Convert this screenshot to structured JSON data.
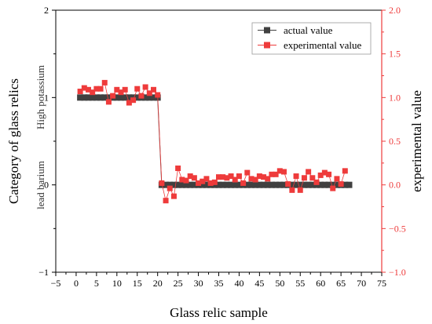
{
  "chart_data": {
    "type": "scatter",
    "xlabel": "Glass relic sample",
    "ylabel_left": "Category of glass relics",
    "ylabel_right": "experimental value",
    "category_labels": [
      {
        "text": "High potassium",
        "value": 1
      },
      {
        "text": "lead barium",
        "value": 0
      }
    ],
    "x_range": [
      -5,
      75
    ],
    "x_ticks": [
      -5,
      0,
      5,
      10,
      15,
      20,
      25,
      30,
      35,
      40,
      45,
      50,
      55,
      60,
      65,
      70,
      75
    ],
    "x_tick_labels": [
      "−5",
      "0",
      "5",
      "10",
      "15",
      "20",
      "25",
      "30",
      "35",
      "40",
      "45",
      "50",
      "55",
      "60",
      "65",
      "70",
      "75"
    ],
    "y_left_range": [
      -1,
      2
    ],
    "y_left_ticks": [
      -1,
      0,
      1,
      2
    ],
    "y_left_tick_labels": [
      "−1",
      "0",
      "1",
      "2"
    ],
    "y_right_range": [
      -1,
      2
    ],
    "y_right_ticks": [
      -1,
      -0.5,
      0,
      0.5,
      1,
      1.5,
      2
    ],
    "y_right_tick_labels": [
      "−1.0",
      "−0.5",
      "0.0",
      "0.5",
      "1.0",
      "1.5",
      "2.0"
    ],
    "legend_position": "top-right",
    "colors": {
      "actual": "#404040",
      "experimental": "#ee3b3b",
      "right_axis": "#ee3b3b"
    },
    "series": [
      {
        "name": "actual value",
        "x": [
          1,
          2,
          3,
          4,
          5,
          6,
          7,
          8,
          9,
          10,
          11,
          12,
          13,
          14,
          15,
          16,
          17,
          18,
          19,
          20,
          21,
          22,
          23,
          24,
          25,
          26,
          27,
          28,
          29,
          30,
          31,
          32,
          33,
          34,
          35,
          36,
          37,
          38,
          39,
          40,
          41,
          42,
          43,
          44,
          45,
          46,
          47,
          48,
          49,
          50,
          51,
          52,
          53,
          54,
          55,
          56,
          57,
          58,
          59,
          60,
          61,
          62,
          63,
          64,
          65,
          66,
          67
        ],
        "values": [
          1,
          1,
          1,
          1,
          1,
          1,
          1,
          1,
          1,
          1,
          1,
          1,
          1,
          1,
          1,
          1,
          1,
          1,
          1,
          1,
          0,
          0,
          0,
          0,
          0,
          0,
          0,
          0,
          0,
          0,
          0,
          0,
          0,
          0,
          0,
          0,
          0,
          0,
          0,
          0,
          0,
          0,
          0,
          0,
          0,
          0,
          0,
          0,
          0,
          0,
          0,
          0,
          0,
          0,
          0,
          0,
          0,
          0,
          0,
          0,
          0,
          0,
          0,
          0,
          0,
          0,
          0
        ]
      },
      {
        "name": "experimental value",
        "x": [
          1,
          2,
          3,
          4,
          5,
          6,
          7,
          8,
          9,
          10,
          11,
          12,
          13,
          14,
          15,
          16,
          17,
          18,
          19,
          20,
          21,
          22,
          23,
          24,
          25,
          26,
          27,
          28,
          29,
          30,
          31,
          32,
          33,
          34,
          35,
          36,
          37,
          38,
          39,
          40,
          41,
          42,
          43,
          44,
          45,
          46,
          47,
          48,
          49,
          50,
          51,
          52,
          53,
          54,
          55,
          56,
          57,
          58,
          59,
          60,
          61,
          62,
          63,
          64,
          65,
          66
        ],
        "values": [
          1.07,
          1.11,
          1.09,
          1.06,
          1.1,
          1.1,
          1.17,
          0.95,
          1.02,
          1.09,
          1.06,
          1.09,
          0.94,
          0.97,
          1.1,
          1.02,
          1.12,
          1.05,
          1.09,
          1.03,
          0.02,
          -0.18,
          -0.04,
          -0.13,
          0.19,
          0.06,
          0.05,
          0.1,
          0.08,
          0.02,
          0.04,
          0.07,
          0.02,
          0.03,
          0.09,
          0.09,
          0.08,
          0.1,
          0.06,
          0.1,
          0.02,
          0.14,
          0.07,
          0.06,
          0.1,
          0.09,
          0.07,
          0.12,
          0.12,
          0.16,
          0.15,
          0.01,
          -0.06,
          0.1,
          -0.06,
          0.08,
          0.15,
          0.08,
          0.03,
          0.11,
          0.14,
          0.12,
          -0.04,
          0.07,
          0.01,
          0.16
        ]
      }
    ]
  }
}
